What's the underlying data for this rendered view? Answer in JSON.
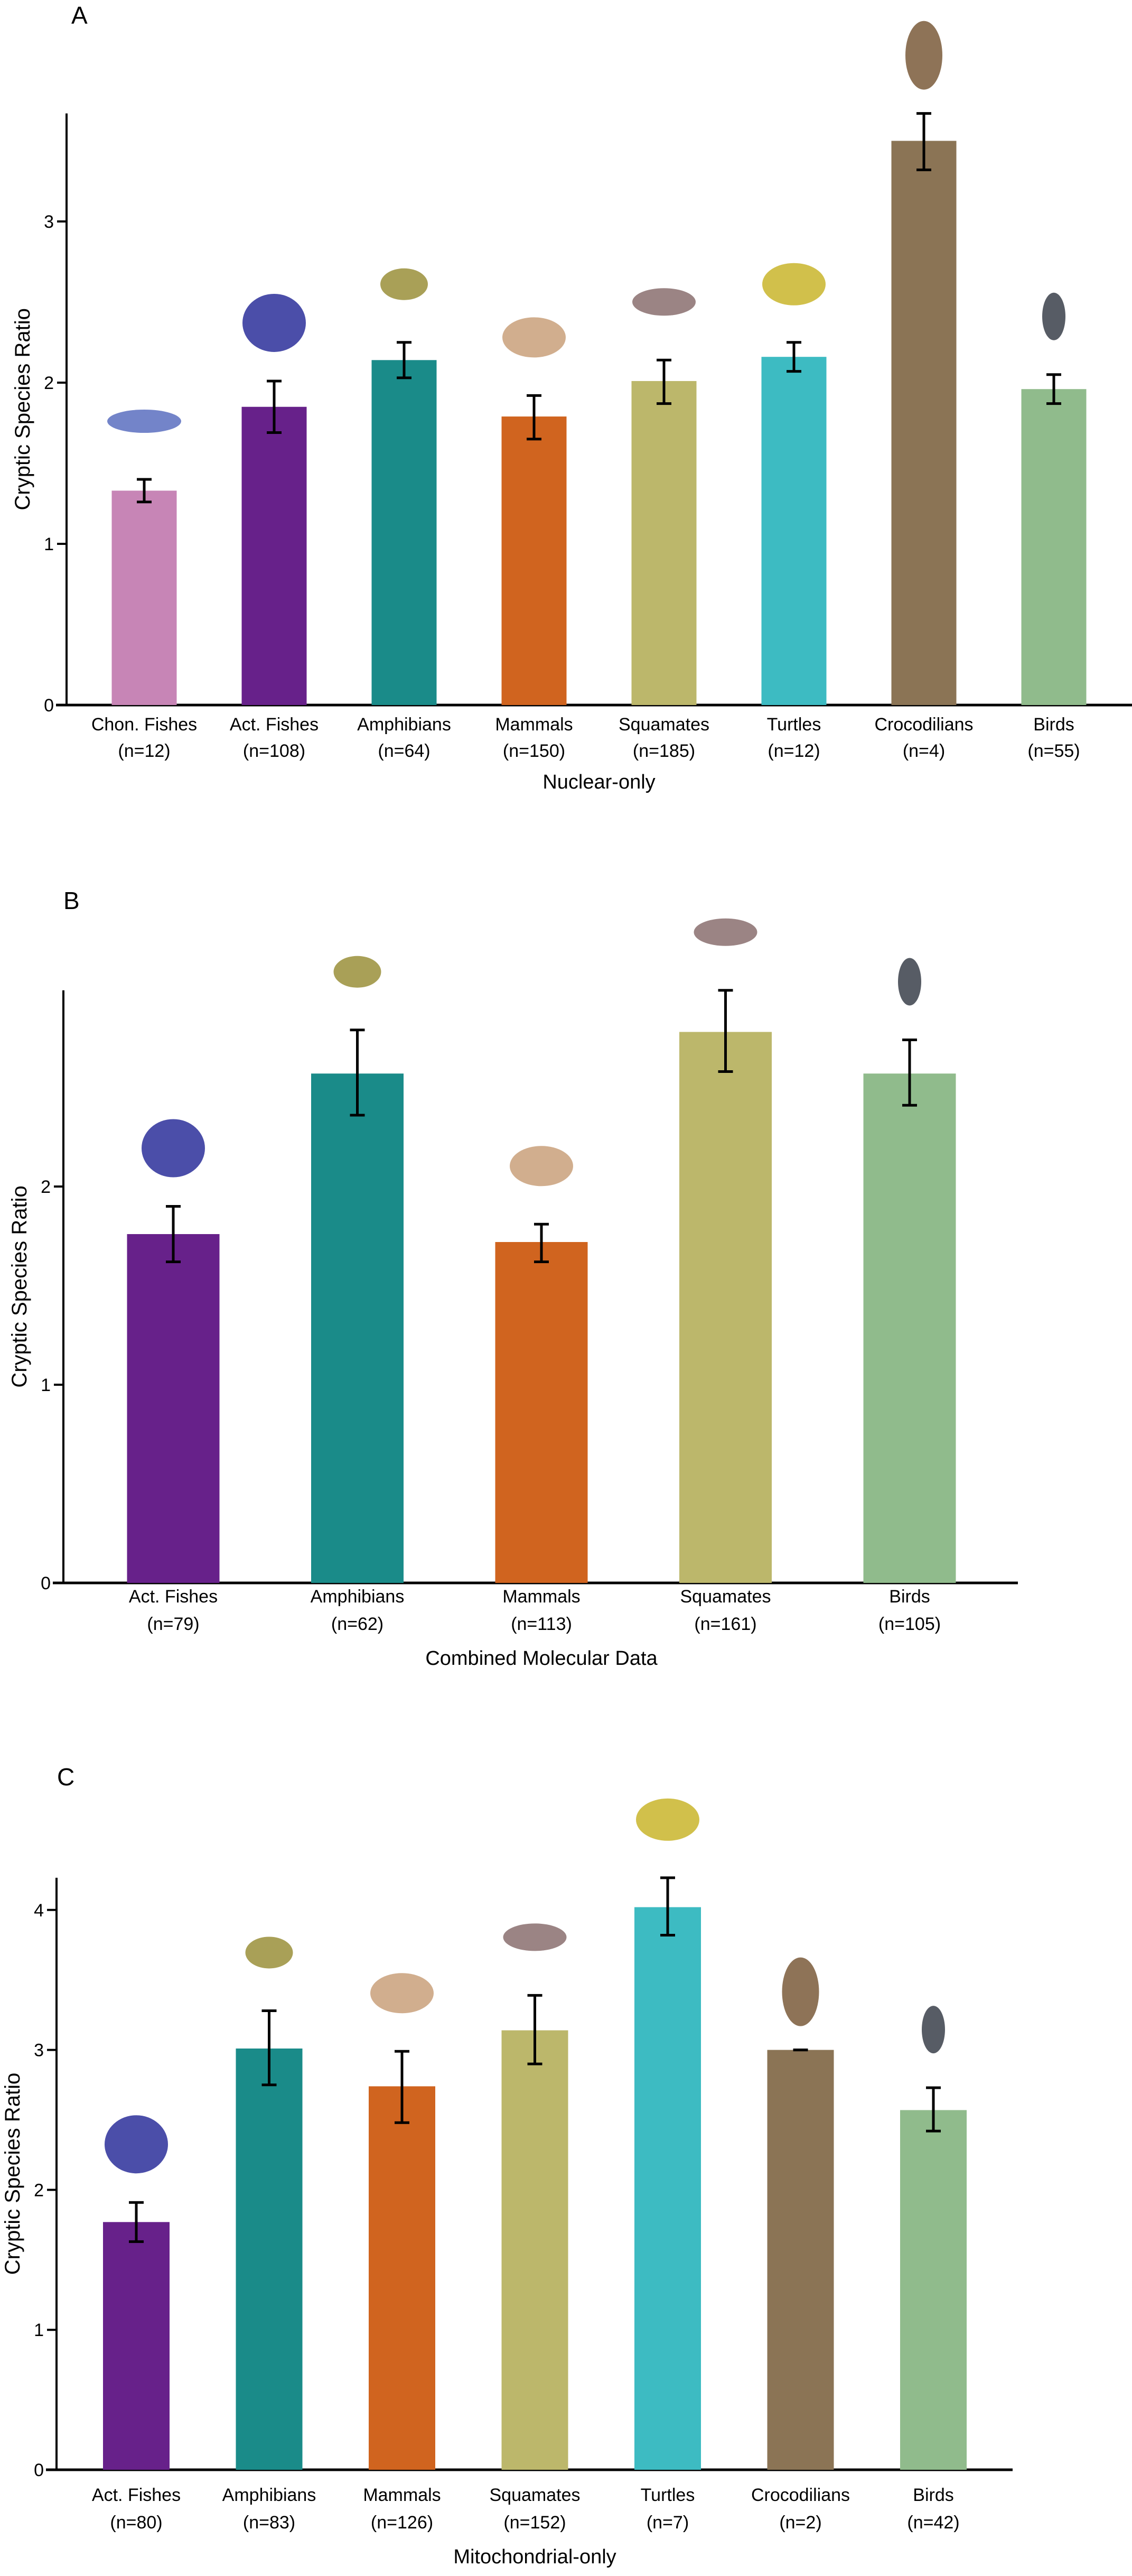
{
  "chart_data": [
    {
      "type": "bar",
      "panel": "A",
      "title": "",
      "xlabel": "Nuclear-only",
      "ylabel": "Cryptic Species Ratio",
      "ylim": [
        0,
        3.67
      ],
      "yticks": [
        "0",
        "1",
        "2",
        "3"
      ],
      "grid": false,
      "categories": [
        "Chon. Fishes",
        "Act. Fishes",
        "Amphibians",
        "Mammals",
        "Squamates",
        "Turtles",
        "Crocodilians",
        "Birds"
      ],
      "n_labels": [
        "(n=12)",
        "(n=108)",
        "(n=64)",
        "(n=150)",
        "(n=185)",
        "(n=12)",
        "(n=4)",
        "(n=55)"
      ],
      "values": [
        1.33,
        1.85,
        2.14,
        1.79,
        2.01,
        2.16,
        3.5,
        1.96
      ],
      "err_upper": [
        1.4,
        2.01,
        2.25,
        1.92,
        2.14,
        2.25,
        3.67,
        2.05
      ],
      "err_lower": [
        1.26,
        1.69,
        2.03,
        1.65,
        1.87,
        2.07,
        3.32,
        1.87
      ],
      "colors": [
        "#c785b6",
        "#67218a",
        "#1a8b89",
        "#d0641f",
        "#bcb76b",
        "#3dbbc2",
        "#8b7455",
        "#90bb8c"
      ],
      "icons": [
        "shark-icon",
        "angelfish-icon",
        "frog-icon",
        "bobcat-icon",
        "gila-monster-icon",
        "tortoise-icon",
        "crocodile-icon",
        "swallow-icon"
      ]
    },
    {
      "type": "bar",
      "panel": "B",
      "title": "",
      "xlabel": "Combined Molecular Data",
      "ylabel": "Cryptic Species Ratio",
      "ylim": [
        0,
        2.99
      ],
      "yticks": [
        "0",
        "1",
        "2"
      ],
      "grid": false,
      "categories": [
        "Act. Fishes",
        "Amphibians",
        "Mammals",
        "Squamates",
        "Birds"
      ],
      "n_labels": [
        "(n=79)",
        "(n=62)",
        "(n=113)",
        "(n=161)",
        "(n=105)"
      ],
      "values": [
        1.76,
        2.57,
        1.72,
        2.78,
        2.57
      ],
      "err_upper": [
        1.9,
        2.79,
        1.81,
        2.99,
        2.74
      ],
      "err_lower": [
        1.62,
        2.36,
        1.62,
        2.58,
        2.41
      ],
      "colors": [
        "#67218a",
        "#1a8b89",
        "#d0641f",
        "#bcb76b",
        "#90bb8c"
      ],
      "icons": [
        "angelfish-icon",
        "frog-icon",
        "bobcat-icon",
        "gila-monster-icon",
        "swallow-icon"
      ]
    },
    {
      "type": "bar",
      "panel": "C",
      "title": "",
      "xlabel": "Mitochondrial-only",
      "ylabel": "Cryptic Species Ratio",
      "ylim": [
        0,
        4.23
      ],
      "yticks": [
        "0",
        "1",
        "2",
        "3",
        "4"
      ],
      "grid": false,
      "categories": [
        "Act. Fishes",
        "Amphibians",
        "Mammals",
        "Squamates",
        "Turtles",
        "Crocodilians",
        "Birds"
      ],
      "n_labels": [
        "(n=80)",
        "(n=83)",
        "(n=126)",
        "(n=152)",
        "(n=7)",
        "(n=2)",
        "(n=42)"
      ],
      "values": [
        1.77,
        3.01,
        2.74,
        3.14,
        4.02,
        3.0,
        2.57
      ],
      "err_upper": [
        1.91,
        3.28,
        2.99,
        3.39,
        4.23,
        3.0,
        2.73
      ],
      "err_lower": [
        1.63,
        2.75,
        2.48,
        2.9,
        3.82,
        3.0,
        2.42
      ],
      "colors": [
        "#67218a",
        "#1a8b89",
        "#d0641f",
        "#bcb76b",
        "#3dbbc2",
        "#8b7455",
        "#90bb8c"
      ],
      "icons": [
        "angelfish-icon",
        "frog-icon",
        "bobcat-icon",
        "gila-monster-icon",
        "tortoise-icon",
        "crocodile-icon",
        "swallow-icon"
      ]
    }
  ]
}
